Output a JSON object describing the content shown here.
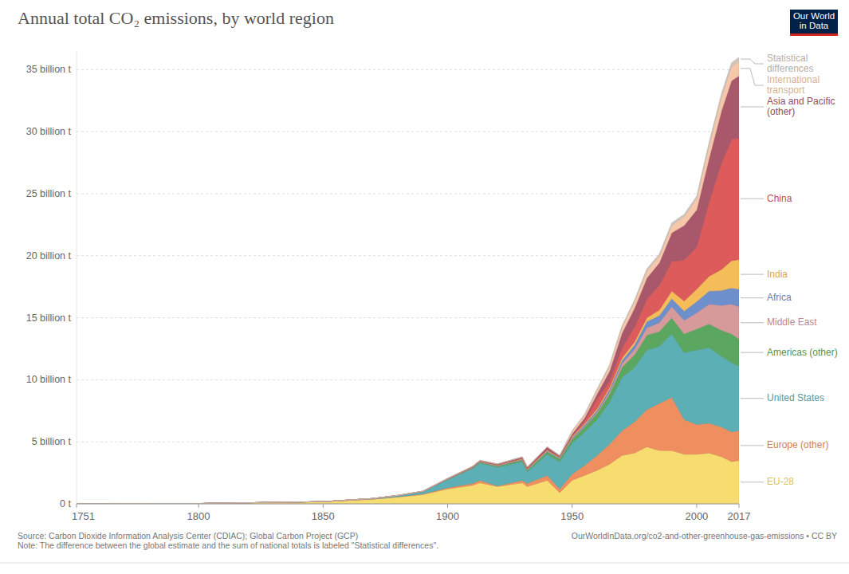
{
  "chart_data": {
    "type": "area",
    "stacked": true,
    "grid": true,
    "legend": "right",
    "title": "Annual total CO₂ emissions, by world region",
    "logo": [
      "Our World",
      "in Data"
    ],
    "source": "Source: Carbon Dioxide Information Analysis Center (CDIAC); Global Carbon Project (GCP)",
    "note": "Note: The difference between the global estimate and the sum of national totals is labeled \"Statistical differences\".",
    "url": "OurWorldInData.org/co2-and-other-greenhouse-gas-emissions • CC BY",
    "x": [
      1751,
      1800,
      1850,
      1870,
      1880,
      1890,
      1900,
      1910,
      1913,
      1920,
      1930,
      1932,
      1940,
      1945,
      1950,
      1955,
      1960,
      1965,
      1970,
      1975,
      1980,
      1985,
      1990,
      1995,
      2000,
      2005,
      2010,
      2014,
      2017
    ],
    "xlim": [
      1751,
      2017
    ],
    "xticks": [
      1751,
      1800,
      1850,
      1900,
      1950,
      2000,
      2017
    ],
    "ylim": [
      0,
      36.5
    ],
    "yticks": [
      {
        "value": 0,
        "label": "0 t"
      },
      {
        "value": 5,
        "label": "5 billion t"
      },
      {
        "value": 10,
        "label": "10 billion t"
      },
      {
        "value": 15,
        "label": "15 billion t"
      },
      {
        "value": 20,
        "label": "20 billion t"
      },
      {
        "value": 25,
        "label": "25 billion t"
      },
      {
        "value": 30,
        "label": "30 billion t"
      },
      {
        "value": 35,
        "label": "35 billion t"
      }
    ],
    "series": [
      {
        "name": "EU-28",
        "color": "#f7dc6f",
        "values": [
          0.009,
          0.027,
          0.17,
          0.38,
          0.55,
          0.75,
          1.2,
          1.5,
          1.7,
          1.4,
          1.7,
          1.4,
          1.9,
          0.9,
          1.9,
          2.3,
          2.7,
          3.2,
          3.9,
          4.1,
          4.6,
          4.3,
          4.3,
          4.0,
          4.0,
          4.1,
          3.8,
          3.4,
          3.5
        ]
      },
      {
        "name": "Europe (other)",
        "color": "#ef8f5f",
        "values": [
          0,
          0.0005,
          0.005,
          0.01,
          0.02,
          0.04,
          0.1,
          0.15,
          0.2,
          0.05,
          0.2,
          0.25,
          0.4,
          0.3,
          0.5,
          0.8,
          1.2,
          1.6,
          2.0,
          2.5,
          3.0,
          3.8,
          4.3,
          2.8,
          2.4,
          2.4,
          2.4,
          2.4,
          2.4
        ]
      },
      {
        "name": "United States",
        "color": "#5bafb5",
        "values": [
          0,
          0.0002,
          0.005,
          0.04,
          0.1,
          0.2,
          0.66,
          1.2,
          1.4,
          1.5,
          1.5,
          0.95,
          1.7,
          2.2,
          2.5,
          2.7,
          2.9,
          3.4,
          4.3,
          4.4,
          4.8,
          4.6,
          5.1,
          5.4,
          6.0,
          6.1,
          5.7,
          5.6,
          5.2
        ]
      },
      {
        "name": "Americas (other)",
        "color": "#5ba75f",
        "values": [
          0,
          0,
          0,
          0.002,
          0.005,
          0.01,
          0.03,
          0.06,
          0.07,
          0.1,
          0.15,
          0.13,
          0.2,
          0.22,
          0.3,
          0.4,
          0.5,
          0.65,
          0.8,
          1.0,
          1.2,
          1.2,
          1.3,
          1.5,
          1.7,
          1.9,
          2.1,
          2.3,
          2.2
        ]
      },
      {
        "name": "Middle East",
        "color": "#d79a9b",
        "values": [
          0,
          0,
          0,
          0,
          0,
          0,
          0,
          0.001,
          0.002,
          0.005,
          0.01,
          0.01,
          0.015,
          0.02,
          0.04,
          0.07,
          0.1,
          0.18,
          0.3,
          0.45,
          0.6,
          0.7,
          0.9,
          1.1,
          1.3,
          1.6,
          2.0,
          2.4,
          2.6
        ]
      },
      {
        "name": "Africa",
        "color": "#6d8fcc",
        "values": [
          0,
          0,
          0,
          0,
          0.001,
          0.003,
          0.01,
          0.02,
          0.025,
          0.03,
          0.04,
          0.04,
          0.06,
          0.07,
          0.1,
          0.12,
          0.15,
          0.2,
          0.25,
          0.35,
          0.5,
          0.58,
          0.65,
          0.75,
          0.9,
          1.05,
          1.2,
          1.3,
          1.4
        ]
      },
      {
        "name": "India",
        "color": "#f5bc5a",
        "values": [
          0,
          0,
          0,
          0.001,
          0.003,
          0.007,
          0.02,
          0.03,
          0.035,
          0.04,
          0.05,
          0.05,
          0.06,
          0.06,
          0.07,
          0.09,
          0.12,
          0.16,
          0.2,
          0.25,
          0.3,
          0.45,
          0.6,
          0.8,
          1.0,
          1.2,
          1.7,
          2.2,
          2.4
        ]
      },
      {
        "name": "China",
        "color": "#dd5b5b",
        "values": [
          0,
          0,
          0,
          0,
          0,
          0,
          0,
          0.005,
          0.008,
          0.02,
          0.03,
          0.03,
          0.05,
          0.02,
          0.08,
          0.2,
          0.78,
          0.5,
          0.8,
          1.2,
          1.5,
          2.0,
          2.4,
          3.3,
          3.4,
          6.0,
          8.6,
          9.8,
          9.8
        ]
      },
      {
        "name": "Asia and Pacific (other)",
        "color": "#a8586a",
        "values": [
          0,
          0,
          0,
          0.001,
          0.003,
          0.01,
          0.03,
          0.05,
          0.06,
          0.07,
          0.1,
          0.1,
          0.2,
          0.1,
          0.15,
          0.25,
          0.4,
          0.8,
          1.2,
          1.5,
          1.7,
          1.8,
          2.3,
          2.8,
          3.0,
          3.5,
          4.2,
          4.7,
          5.0
        ]
      },
      {
        "name": "International transport",
        "color": "#f6c7a9",
        "values": [
          0,
          0,
          0,
          0,
          0,
          0,
          0,
          0,
          0,
          0,
          0,
          0,
          0,
          0,
          0.2,
          0.25,
          0.3,
          0.4,
          0.5,
          0.55,
          0.6,
          0.55,
          0.6,
          0.7,
          0.9,
          1.05,
          1.1,
          1.15,
          1.2
        ]
      },
      {
        "name": "Statistical differences",
        "color": "#cfc6c0",
        "values": [
          0,
          0,
          0,
          0,
          0,
          0,
          0,
          0,
          0,
          0,
          0,
          0,
          0,
          0,
          0.05,
          0.05,
          0.1,
          0.1,
          0.1,
          0.1,
          0.15,
          0.15,
          0.2,
          0.2,
          0.2,
          0.25,
          0.3,
          0.3,
          0.3
        ]
      }
    ]
  }
}
